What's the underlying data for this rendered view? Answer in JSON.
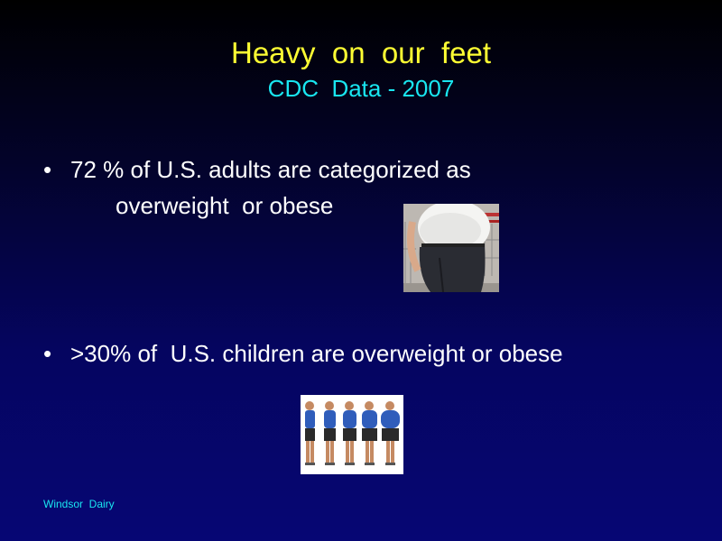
{
  "slide": {
    "title": "Heavy  on  our  feet",
    "subtitle": "CDC  Data - 2007",
    "bullets": [
      {
        "line1": "72 % of U.S. adults are categorized as",
        "line2": "overweight  or obese"
      },
      {
        "line1": ">30% of  U.S. children are overweight or obese"
      }
    ],
    "bullet_symbol": "•",
    "footer": "Windsor  Dairy"
  },
  "images": {
    "adult_photo": "overweight-man-photo",
    "children_photo": "children-silhouettes-photo"
  },
  "colors": {
    "title": "#ffff33",
    "subtitle": "#19e6f0",
    "body_text": "#ffffff",
    "background_top": "#000000",
    "background_bottom": "#060674"
  }
}
